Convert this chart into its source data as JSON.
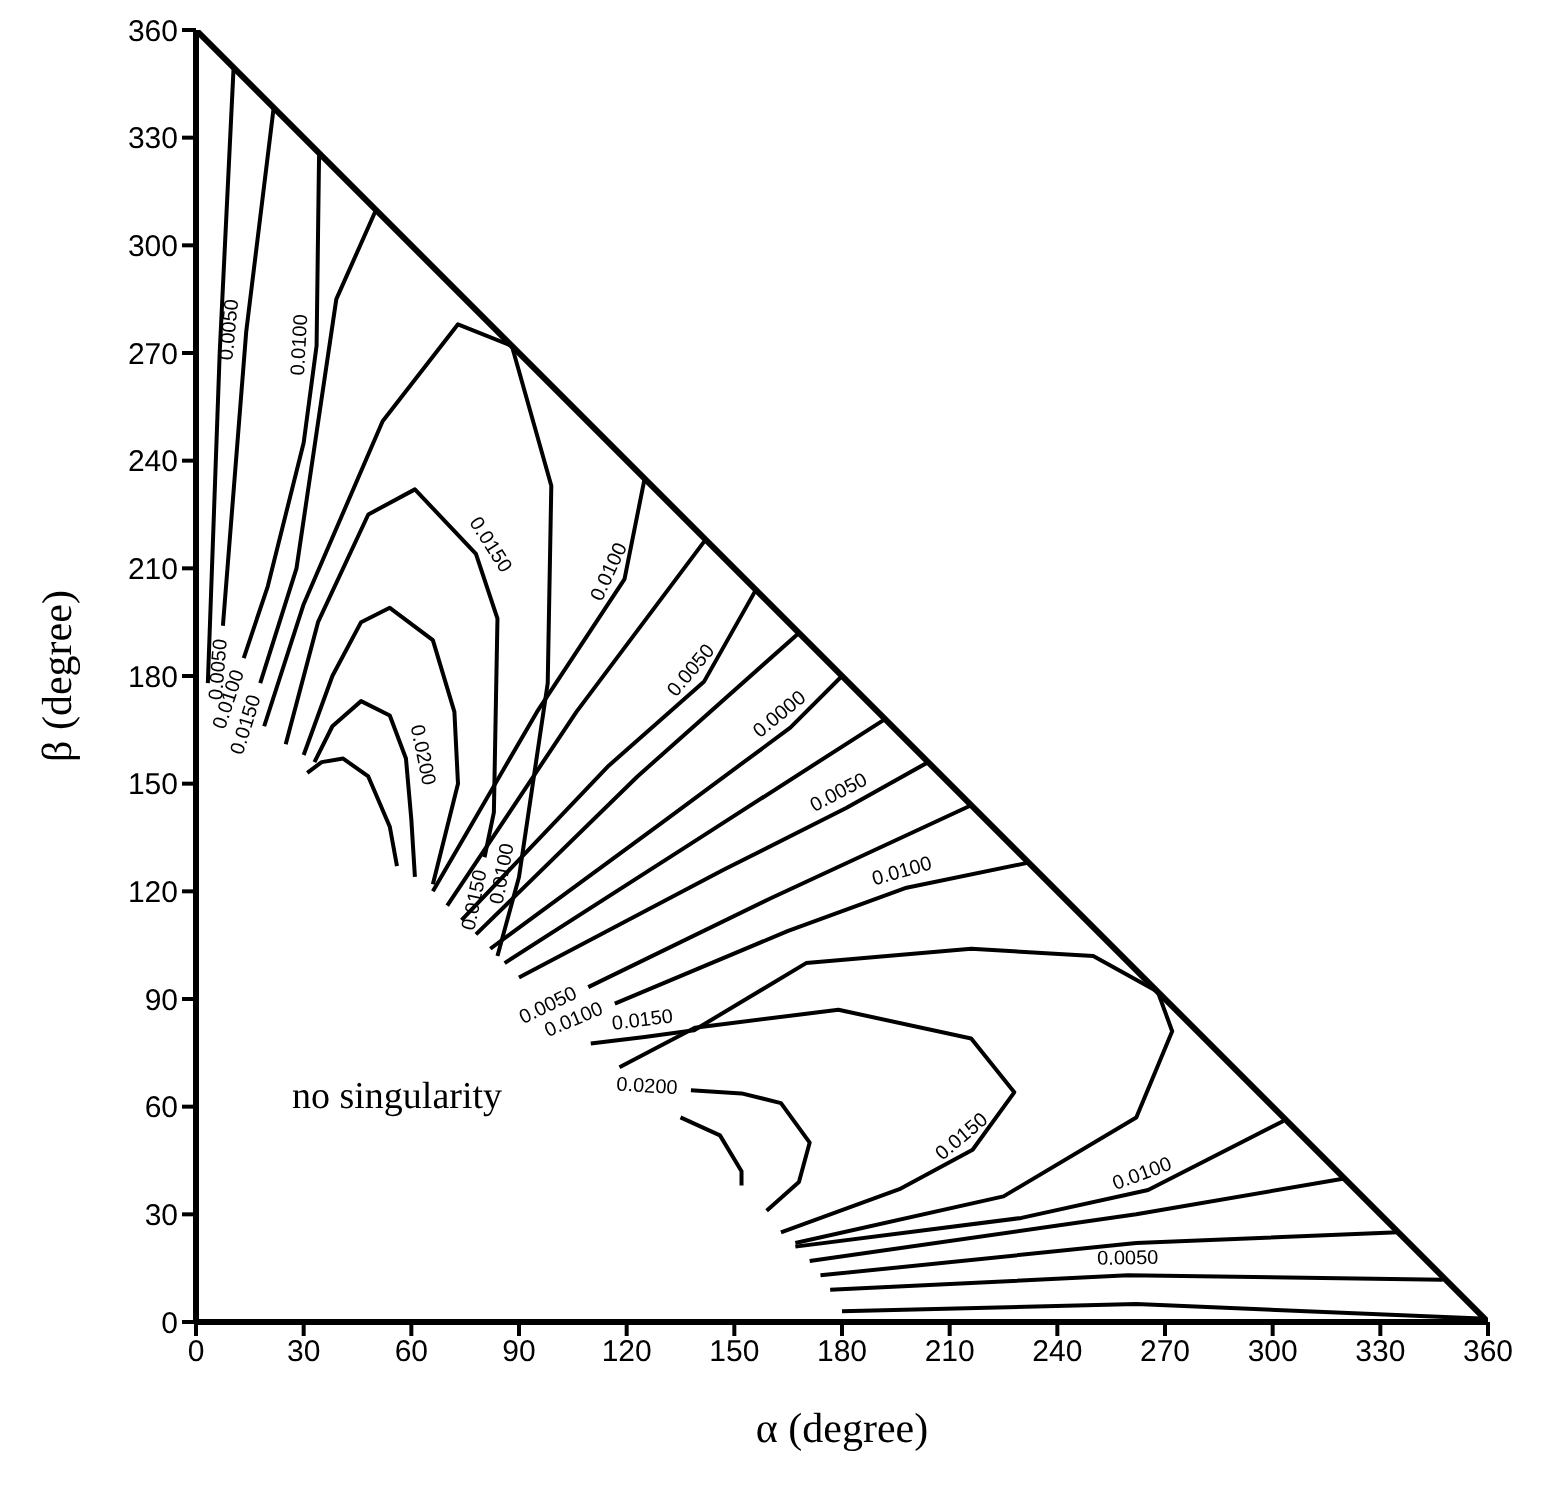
{
  "chart_data": {
    "type": "line",
    "xlabel": "α (degree)",
    "ylabel": "β (degree)",
    "xlim": [
      0,
      360
    ],
    "ylim": [
      0,
      360
    ],
    "xticks": [
      0,
      30,
      60,
      90,
      120,
      150,
      180,
      210,
      240,
      270,
      300,
      330,
      360
    ],
    "yticks": [
      0,
      30,
      60,
      90,
      120,
      150,
      180,
      210,
      240,
      270,
      300,
      330,
      360
    ],
    "grid": false,
    "marker": "none",
    "line_style": "solid",
    "series": [
      {
        "color": "#000000",
        "x": [
          0,
          360
        ],
        "values": [
          360,
          0
        ]
      },
      {
        "color": "#000000",
        "x": [
          3.3,
          6.6,
          10.5
        ],
        "values": [
          178,
          270,
          350
        ]
      },
      {
        "color": "#000000",
        "x": [
          7.5,
          14,
          21.6
        ],
        "values": [
          194,
          276,
          338
        ]
      },
      {
        "color": "#000000",
        "x": [
          13.3,
          20,
          30,
          33.6,
          34.3
        ],
        "values": [
          185,
          205,
          245,
          272,
          326
        ]
      },
      {
        "color": "#000000",
        "x": [
          17.9,
          28,
          39.1,
          50.2
        ],
        "values": [
          178,
          210,
          285,
          310
        ]
      },
      {
        "color": "#000000",
        "x": [
          19,
          30,
          52,
          73,
          88,
          99,
          98,
          90,
          84
        ],
        "values": [
          166,
          200,
          251,
          278,
          272,
          233,
          178,
          124,
          102
        ]
      },
      {
        "color": "#000000",
        "x": [
          25,
          34,
          48,
          61,
          78,
          84,
          83,
          80.4
        ],
        "values": [
          161,
          195,
          225,
          232,
          214,
          196,
          142,
          129.5
        ]
      },
      {
        "color": "#000000",
        "x": [
          30,
          38,
          46,
          54,
          66,
          72,
          73,
          66
        ],
        "values": [
          158,
          180,
          195,
          199,
          190,
          170,
          150,
          122
        ]
      },
      {
        "color": "#000000",
        "x": [
          33,
          38,
          46,
          54,
          58.5,
          60,
          61
        ],
        "values": [
          156,
          166,
          173,
          169,
          157,
          140,
          124
        ]
      },
      {
        "color": "#000000",
        "x": [
          31,
          35,
          41,
          48,
          54,
          56
        ],
        "values": [
          153,
          156,
          157,
          152,
          138,
          127
        ]
      },
      {
        "color": "#000000",
        "x": [
          66,
          95,
          119.4,
          125
        ],
        "values": [
          120,
          170,
          207,
          235
        ]
      },
      {
        "color": "#000000",
        "x": [
          70,
          106,
          142
        ],
        "values": [
          116,
          170,
          218
        ]
      },
      {
        "color": "#000000",
        "x": [
          74,
          115,
          141.6,
          156
        ],
        "values": [
          112,
          155,
          178.5,
          204
        ]
      },
      {
        "color": "#000000",
        "x": [
          78,
          123,
          168
        ],
        "values": [
          108,
          152,
          192
        ]
      },
      {
        "color": "#000000",
        "x": [
          82,
          131,
          165.6,
          180
        ],
        "values": [
          104,
          140,
          165.6,
          180
        ]
      },
      {
        "color": "#000000",
        "x": [
          86,
          139,
          192
        ],
        "values": [
          100,
          134,
          168
        ]
      },
      {
        "color": "#000000",
        "x": [
          90,
          147,
          181.3,
          204
        ],
        "values": [
          96,
          126,
          143.3,
          156
        ]
      },
      {
        "color": "#000000",
        "x": [
          109.3,
          160,
          216
        ],
        "values": [
          93.3,
          118,
          144
        ]
      },
      {
        "color": "#000000",
        "x": [
          116.7,
          165,
          198,
          232
        ],
        "values": [
          88.7,
          109,
          121,
          128
        ]
      },
      {
        "color": "#000000",
        "x": [
          110,
          125,
          138.8,
          170,
          216,
          250,
          268,
          272,
          262,
          225,
          167
        ],
        "values": [
          77.6,
          79.4,
          81.3,
          100,
          104,
          102,
          92,
          81,
          57,
          35,
          22
        ]
      },
      {
        "color": "#000000",
        "x": [
          118,
          139,
          179,
          216,
          228,
          216.4,
          196,
          163
        ],
        "values": [
          71,
          82,
          87,
          79,
          64,
          48,
          37,
          25
        ]
      },
      {
        "color": "#000000",
        "x": [
          137.9,
          152,
          163,
          171,
          168,
          159
        ],
        "values": [
          64.6,
          63.7,
          61,
          50,
          39,
          31
        ]
      },
      {
        "color": "#000000",
        "x": [
          135,
          146,
          152,
          152
        ],
        "values": [
          57,
          52,
          42,
          38
        ]
      },
      {
        "color": "#000000",
        "x": [
          167,
          230,
          265.3,
          303
        ],
        "values": [
          21,
          29,
          36.8,
          56
        ]
      },
      {
        "color": "#000000",
        "x": [
          171,
          262,
          320
        ],
        "values": [
          17,
          30,
          40
        ]
      },
      {
        "color": "#000000",
        "x": [
          174,
          262,
          335
        ],
        "values": [
          13,
          22,
          25
        ]
      },
      {
        "color": "#000000",
        "x": [
          176.7,
          259.7,
          347.4
        ],
        "values": [
          9,
          13,
          11.8
        ]
      },
      {
        "color": "#000000",
        "x": [
          180,
          262,
          358
        ],
        "values": [
          3,
          5,
          1
        ]
      }
    ],
    "annotations": [
      "no singularity",
      {
        "text": "0.0050",
        "x": 14,
        "y": 276
      },
      {
        "text": "0.0100",
        "x": 33.6,
        "y": 272
      },
      {
        "text": "0.0050",
        "x": 7.5,
        "y": 194
      },
      {
        "text": "0.0100",
        "x": 13.3,
        "y": 185
      },
      {
        "text": "0.0150",
        "x": 17.9,
        "y": 178
      },
      {
        "text": "0.0150",
        "x": 78,
        "y": 214
      },
      {
        "text": "0.0200",
        "x": 58.5,
        "y": 157
      },
      {
        "text": "0.0150",
        "x": 80.4,
        "y": 129.5
      },
      {
        "text": "0.0100",
        "x": 90,
        "y": 124
      },
      {
        "text": "0.0100",
        "x": 119.4,
        "y": 207
      },
      {
        "text": "0.0050",
        "x": 141.6,
        "y": 178.5
      },
      {
        "text": "0.0000",
        "x": 165.6,
        "y": 165.6
      },
      {
        "text": "0.0050",
        "x": 181.3,
        "y": 143.3
      },
      {
        "text": "0.0100",
        "x": 198,
        "y": 121
      },
      {
        "text": "0.0050",
        "x": 109.3,
        "y": 93.3
      },
      {
        "text": "0.0100",
        "x": 116.7,
        "y": 88.7
      },
      {
        "text": "0.0150",
        "x": 125,
        "y": 79.4
      },
      {
        "text": "0.0200",
        "x": 137.9,
        "y": 64.6
      },
      {
        "text": "0.0150",
        "x": 216.4,
        "y": 48
      },
      {
        "text": "0.0100",
        "x": 265.3,
        "y": 36.8
      },
      {
        "text": "0.0050",
        "x": 259.7,
        "y": 13
      }
    ]
  }
}
